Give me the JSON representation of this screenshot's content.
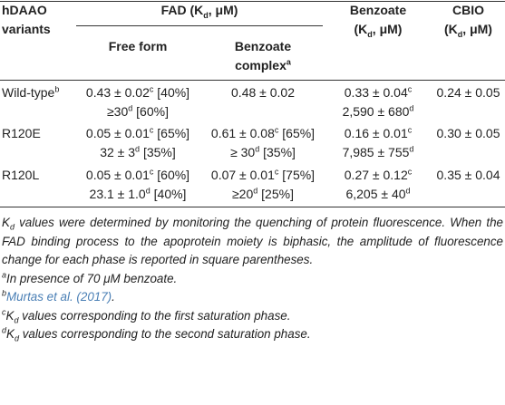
{
  "table": {
    "header": {
      "variants": [
        [
          "hDAAO"
        ],
        [
          "variants"
        ]
      ],
      "fad": [
        [
          "FAD (K",
          {
            "sub": "d"
          },
          ", μM)"
        ]
      ],
      "free_form": [
        [
          "Free form"
        ]
      ],
      "complex": [
        [
          "Benzoate"
        ],
        [
          "complex",
          {
            "sup": "a"
          }
        ]
      ],
      "benzoate": [
        [
          "Benzoate"
        ],
        [
          "(K",
          {
            "sub": "d"
          },
          ", μM)"
        ]
      ],
      "cbio": [
        [
          "CBIO"
        ],
        [
          "(K",
          {
            "sub": "d"
          },
          ", μM)"
        ]
      ]
    },
    "rows": [
      [
        [
          [
            "Wild-type",
            {
              "sup": "b"
            }
          ]
        ],
        [
          [
            "0.43 ± 0.02",
            {
              "sup": "c"
            },
            " [40%]"
          ],
          [
            "≥30",
            {
              "sup": "d"
            },
            " [60%]"
          ]
        ],
        [
          [
            "0.48 ± 0.02"
          ]
        ],
        [
          [
            "0.33 ± 0.04",
            {
              "sup": "c"
            }
          ],
          [
            "2,590 ± 680",
            {
              "sup": "d"
            }
          ]
        ],
        [
          [
            "0.24 ± 0.05"
          ]
        ]
      ],
      [
        [
          [
            "R120E"
          ]
        ],
        [
          [
            "0.05 ± 0.01",
            {
              "sup": "c"
            },
            " [65%]"
          ],
          [
            "32 ± 3",
            {
              "sup": "d"
            },
            " [35%]"
          ]
        ],
        [
          [
            "0.61 ± 0.08",
            {
              "sup": "c"
            },
            " [65%]"
          ],
          [
            "≥ 30",
            {
              "sup": "d"
            },
            " [35%]"
          ]
        ],
        [
          [
            "0.16 ± 0.01",
            {
              "sup": "c"
            }
          ],
          [
            "7,985 ± 755",
            {
              "sup": "d"
            }
          ]
        ],
        [
          [
            "0.30 ± 0.05"
          ]
        ]
      ],
      [
        [
          [
            "R120L"
          ]
        ],
        [
          [
            "0.05 ± 0.01",
            {
              "sup": "c"
            },
            " [60%]"
          ],
          [
            "23.1 ± 1.0",
            {
              "sup": "d"
            },
            " [40%]"
          ]
        ],
        [
          [
            "0.07 ± 0.01",
            {
              "sup": "c"
            },
            " [75%]"
          ],
          [
            "≥20",
            {
              "sup": "d"
            },
            " [25%]"
          ]
        ],
        [
          [
            "0.27 ± 0.12",
            {
              "sup": "c"
            }
          ],
          [
            "6,205 ± 40",
            {
              "sup": "d"
            }
          ]
        ],
        [
          [
            "0.35 ± 0.04"
          ]
        ]
      ]
    ]
  },
  "notes": [
    [
      "K",
      {
        "sub": "d"
      },
      " values were determined by monitoring the quenching of protein fluorescence. When the FAD binding process to the apoprotein moiety is biphasic, the amplitude of fluorescence change for each phase is reported in square parentheses."
    ],
    [
      {
        "sup": "a"
      },
      "In presence of 70 μM benzoate."
    ],
    [
      {
        "sup": "b"
      },
      {
        "link": "Murtas et al. (2017)"
      },
      "."
    ],
    [
      {
        "sup": "c"
      },
      "K",
      {
        "sub": "d"
      },
      " values corresponding to the first saturation phase."
    ],
    [
      {
        "sup": "d"
      },
      "K",
      {
        "sub": "d"
      },
      " values corresponding to the second saturation phase."
    ]
  ]
}
